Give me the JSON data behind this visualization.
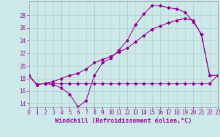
{
  "background_color": "#cce8e8",
  "line_color": "#990099",
  "grid_color": "#aacccc",
  "xlabel": "Windchill (Refroidissement éolien,°C)",
  "xlabel_fontsize": 6.5,
  "tick_fontsize": 5.5,
  "xlim": [
    0,
    23
  ],
  "ylim": [
    13.5,
    30.2
  ],
  "yticks": [
    14,
    16,
    18,
    20,
    22,
    24,
    26,
    28
  ],
  "xticks": [
    0,
    1,
    2,
    3,
    4,
    5,
    6,
    7,
    8,
    9,
    10,
    11,
    12,
    13,
    14,
    15,
    16,
    17,
    18,
    19,
    20,
    21,
    22,
    23
  ],
  "line1_y": [
    18.5,
    17.0,
    17.2,
    17.0,
    16.5,
    15.5,
    13.5,
    14.5,
    18.5,
    20.5,
    21.2,
    22.5,
    24.0,
    26.5,
    28.2,
    29.5,
    29.5,
    29.2,
    29.0,
    28.5,
    27.0,
    25.0,
    18.5,
    18.5
  ],
  "line2_y": [
    18.5,
    17.1,
    17.2,
    17.2,
    17.2,
    17.2,
    17.2,
    17.2,
    17.2,
    17.2,
    17.2,
    17.2,
    17.2,
    17.2,
    17.2,
    17.2,
    17.2,
    17.2,
    17.2,
    17.2,
    17.2,
    17.2,
    17.2,
    18.5
  ],
  "line3_y": [
    18.5,
    17.0,
    17.2,
    17.5,
    18.0,
    18.5,
    18.8,
    19.5,
    20.5,
    21.0,
    21.5,
    22.2,
    22.8,
    23.8,
    24.8,
    25.8,
    26.3,
    26.8,
    27.2,
    27.5,
    27.2,
    25.0,
    18.5,
    18.5
  ]
}
